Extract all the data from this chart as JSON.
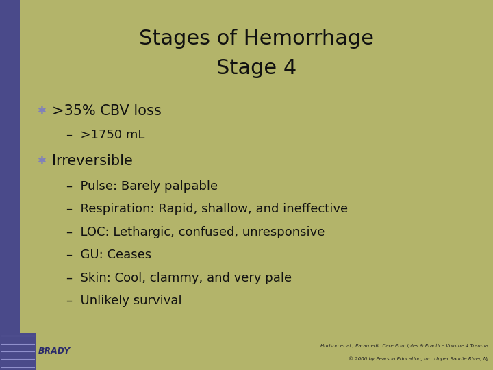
{
  "title_line1": "Stages of Hemorrhage",
  "title_line2": "Stage 4",
  "bg_color": "#b3b46a",
  "left_bar_color": "#4a4a8a",
  "title_color": "#111111",
  "bullet_color": "#8080bb",
  "text_color": "#111111",
  "sub_text_color": "#111111",
  "bullet1": ">35% CBV loss",
  "sub1": ">1750 mL",
  "bullet2": "Irreversible",
  "subs2": [
    "Pulse: Barely palpable",
    "Respiration: Rapid, shallow, and ineffective",
    "LOC: Lethargic, confused, unresponsive",
    "GU: Ceases",
    "Skin: Cool, clammy, and very pale",
    "Unlikely survival"
  ],
  "footer_left": "BRADY",
  "footer_right1": "Hudson et al., Paramedic Care Principles & Practice Volume 4 Trauma",
  "footer_right2": "© 2006 by Pearson Education, Inc. Upper Saddle River, NJ",
  "left_bar_width": 0.04,
  "title_fontsize": 22,
  "bullet_fontsize": 15,
  "sub_fontsize": 13,
  "footer_fontsize": 5
}
